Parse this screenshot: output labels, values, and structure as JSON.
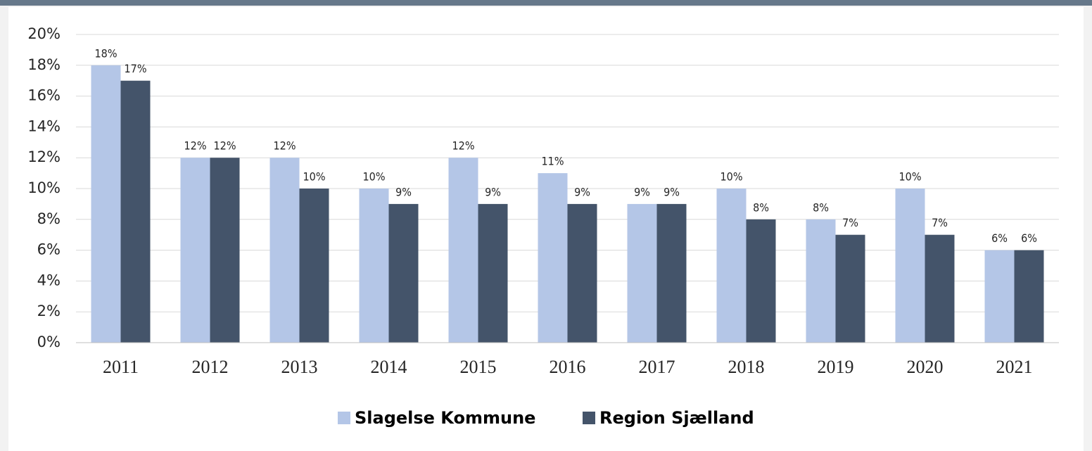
{
  "chart_data": {
    "type": "bar",
    "categories": [
      "2011",
      "2012",
      "2013",
      "2014",
      "2015",
      "2016",
      "2017",
      "2018",
      "2019",
      "2020",
      "2021"
    ],
    "series": [
      {
        "name": "Slagelse Kommune",
        "color": "#b4c6e7",
        "values": [
          18,
          12,
          12,
          10,
          12,
          11,
          9,
          10,
          8,
          10,
          6
        ],
        "value_labels": [
          "18%",
          "12%",
          "12%",
          "10%",
          "12%",
          "11%",
          "9%",
          "10%",
          "8%",
          "10%",
          "6%"
        ]
      },
      {
        "name": "Region Sjælland",
        "color": "#44546a",
        "values": [
          17,
          12,
          10,
          9,
          9,
          9,
          9,
          8,
          7,
          7,
          6
        ],
        "value_labels": [
          "17%",
          "12%",
          "10%",
          "9%",
          "9%",
          "9%",
          "9%",
          "8%",
          "7%",
          "7%",
          "6%"
        ]
      }
    ],
    "ylim": [
      0,
      20
    ],
    "yticks": [
      {
        "value": 0,
        "label": "0%"
      },
      {
        "value": 2,
        "label": "2%"
      },
      {
        "value": 4,
        "label": "4%"
      },
      {
        "value": 6,
        "label": "6%"
      },
      {
        "value": 8,
        "label": "8%"
      },
      {
        "value": 10,
        "label": "10%"
      },
      {
        "value": 12,
        "label": "12%"
      },
      {
        "value": 14,
        "label": "14%"
      },
      {
        "value": 16,
        "label": "16%"
      },
      {
        "value": 18,
        "label": "18%"
      },
      {
        "value": 20,
        "label": "20%"
      }
    ],
    "grid": true,
    "legend": "bottom"
  }
}
